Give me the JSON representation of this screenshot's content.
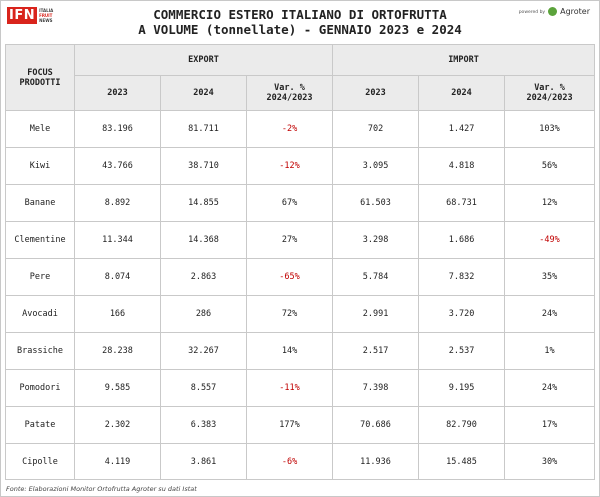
{
  "logo": {
    "mark": "IFN",
    "sub": [
      "ITALIA",
      "FRUIT",
      "NEWS"
    ]
  },
  "title": [
    "COMMERCIO ESTERO ITALIANO DI ORTOFRUTTA",
    "A VOLUME (tonnellate) - GENNAIO 2023 e 2024"
  ],
  "powered": {
    "by": "powered by",
    "brand": "Agroter"
  },
  "table": {
    "focus_header": [
      "FOCUS",
      "PRODOTTI"
    ],
    "groups": [
      "EXPORT",
      "IMPORT"
    ],
    "subheaders": [
      "2023",
      "2024",
      "Var. %",
      "2024/2023"
    ],
    "rows": [
      {
        "product": "Mele",
        "exp_2023": "83.196",
        "exp_2024": "81.711",
        "exp_var": "-2%",
        "imp_2023": "702",
        "imp_2024": "1.427",
        "imp_var": "103%"
      },
      {
        "product": "Kiwi",
        "exp_2023": "43.766",
        "exp_2024": "38.710",
        "exp_var": "-12%",
        "imp_2023": "3.095",
        "imp_2024": "4.818",
        "imp_var": "56%"
      },
      {
        "product": "Banane",
        "exp_2023": "8.892",
        "exp_2024": "14.855",
        "exp_var": "67%",
        "imp_2023": "61.503",
        "imp_2024": "68.731",
        "imp_var": "12%"
      },
      {
        "product": "Clementine",
        "exp_2023": "11.344",
        "exp_2024": "14.368",
        "exp_var": "27%",
        "imp_2023": "3.298",
        "imp_2024": "1.686",
        "imp_var": "-49%"
      },
      {
        "product": "Pere",
        "exp_2023": "8.074",
        "exp_2024": "2.863",
        "exp_var": "-65%",
        "imp_2023": "5.784",
        "imp_2024": "7.832",
        "imp_var": "35%"
      },
      {
        "product": "Avocadi",
        "exp_2023": "166",
        "exp_2024": "286",
        "exp_var": "72%",
        "imp_2023": "2.991",
        "imp_2024": "3.720",
        "imp_var": "24%"
      },
      {
        "product": "Brassiche",
        "exp_2023": "28.238",
        "exp_2024": "32.267",
        "exp_var": "14%",
        "imp_2023": "2.517",
        "imp_2024": "2.537",
        "imp_var": "1%"
      },
      {
        "product": "Pomodori",
        "exp_2023": "9.585",
        "exp_2024": "8.557",
        "exp_var": "-11%",
        "imp_2023": "7.398",
        "imp_2024": "9.195",
        "imp_var": "24%"
      },
      {
        "product": "Patate",
        "exp_2023": "2.302",
        "exp_2024": "6.383",
        "exp_var": "177%",
        "imp_2023": "70.686",
        "imp_2024": "82.790",
        "imp_var": "17%"
      },
      {
        "product": "Cipolle",
        "exp_2023": "4.119",
        "exp_2024": "3.861",
        "exp_var": "-6%",
        "imp_2023": "11.936",
        "imp_2024": "15.485",
        "imp_var": "30%"
      }
    ]
  },
  "footnote": "Fonte: Elaborazioni Monitor Ortofrutta Agroter su dati Istat",
  "colors": {
    "negative": "#c00000",
    "header_bg": "#ebebeb",
    "logo_red": "#d9241c",
    "agroter_green": "#5ba33b"
  }
}
